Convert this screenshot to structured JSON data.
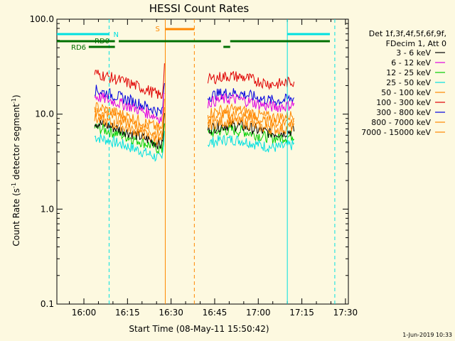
{
  "chart_data": {
    "type": "line",
    "title": "HESSI Count Rates",
    "xlabel": "Start Time (08-May-11 15:50:42)",
    "ylabel_main": "Count Rate (s",
    "ylabel_sup": "-1",
    "ylabel_tail": " detector segment",
    "ylabel_end": ")",
    "y_scale": "log",
    "ylim": [
      0.1,
      100
    ],
    "xlim": [
      "15:50:42",
      "17:31:00"
    ],
    "x_ticks": [
      "16:00",
      "16:15",
      "16:30",
      "16:45",
      "17:00",
      "17:15",
      "17:30"
    ],
    "y_ticks": [
      "0.1",
      "1.0",
      "10.0",
      "100.0"
    ],
    "legend_header": [
      "Det 1f,3f,4f,5f,6f,9f,",
      "FDecim 1, Att 0"
    ],
    "legend_position": "right",
    "series": [
      {
        "name": "3 - 6 keV",
        "color": "#000000",
        "level": 8.2
      },
      {
        "name": "6 - 12 keV",
        "color": "#e000e0",
        "level": 15.5
      },
      {
        "name": "12 - 25 keV",
        "color": "#00d000",
        "level": 7.3
      },
      {
        "name": "25 - 50 keV",
        "color": "#00e0e0",
        "level": 5.8
      },
      {
        "name": "50 - 100 keV",
        "color": "#ff8800",
        "level": 12.0
      },
      {
        "name": "100 - 300 keV",
        "color": "#e00000",
        "level": 27.0
      },
      {
        "name": "300 - 800 keV",
        "color": "#0000e0",
        "level": 18.0
      },
      {
        "name": "800 - 7000 keV",
        "color": "#ff8800",
        "level": 10.5
      },
      {
        "name": "7000 - 15000 keV",
        "color": "#ff8800",
        "level": 9.0
      }
    ],
    "data_segments": [
      {
        "start": "16:03:40",
        "end": "16:28:00"
      },
      {
        "start": "16:42:40",
        "end": "17:12:30"
      }
    ],
    "annotations": {
      "night_label": "N",
      "saa_label": "S",
      "rd0_label": "RD0",
      "rd6_label": "RD6"
    },
    "timestamp": "1-Jun-2019 10:33"
  }
}
